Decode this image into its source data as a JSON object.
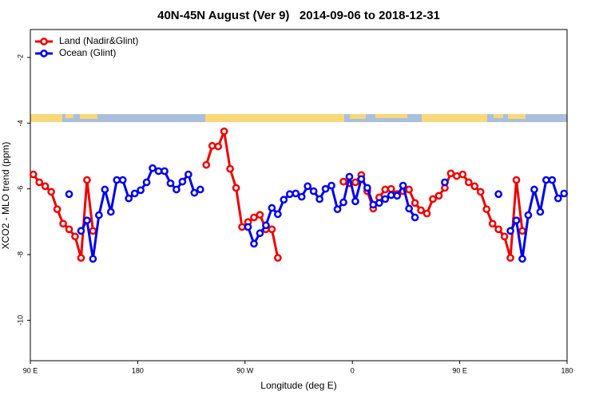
{
  "chart_data": {
    "type": "line",
    "title": "40N-45N August (Ver 9)   2014-09-06 to 2018-12-31",
    "xlabel": "Longitude (deg E)",
    "ylabel": "XCO2 - MLO trend (ppm)",
    "x": [
      92.5,
      97.5,
      102.5,
      107.5,
      112.5,
      117.5,
      122.5,
      127.5,
      132.5,
      137.5,
      142.5,
      147.5,
      152.5,
      157.5,
      162.5,
      167.5,
      172.5,
      177.5,
      182.5,
      187.5,
      192.5,
      197.5,
      202.5,
      207.5,
      212.5,
      217.5,
      222.5,
      227.5,
      232.5,
      237.5,
      242.5,
      247.5,
      252.5,
      257.5,
      262.5,
      267.5,
      272.5,
      277.5,
      282.5,
      287.5,
      292.5,
      297.5,
      302.5,
      307.5,
      312.5,
      317.5,
      322.5,
      327.5,
      332.5,
      337.5,
      342.5,
      347.5,
      352.5,
      357.5,
      362.5,
      367.5,
      372.5,
      377.5,
      382.5,
      387.5,
      392.5,
      397.5,
      402.5,
      407.5,
      412.5,
      417.5,
      422.5,
      427.5,
      432.5,
      437.5,
      442.5,
      447.5,
      452.5,
      457.5,
      462.5,
      467.5,
      472.5,
      477.5,
      482.5,
      487.5,
      492.5,
      497.5,
      502.5,
      507.5,
      512.5,
      517.5,
      522.5,
      527.5,
      532.5,
      537.5
    ],
    "series": [
      {
        "name": "Land (Nadir&Glint)",
        "color": "#ee0000",
        "values": [
          -5.56,
          -5.8,
          -5.92,
          -6.09,
          -6.62,
          -7.06,
          -7.23,
          -7.45,
          -8.1,
          -5.73,
          -7.28,
          null,
          null,
          null,
          null,
          null,
          null,
          null,
          null,
          null,
          null,
          null,
          null,
          null,
          null,
          null,
          null,
          null,
          null,
          -5.27,
          -4.69,
          -4.71,
          -4.25,
          -5.39,
          -5.97,
          -7.16,
          -7.01,
          -6.87,
          -6.79,
          -7.23,
          -7.23,
          -8.1,
          null,
          null,
          null,
          null,
          null,
          null,
          null,
          null,
          null,
          null,
          -5.78,
          -5.83,
          -5.8,
          -5.58,
          -6.07,
          -6.6,
          -6.26,
          -6.02,
          -6.0,
          -6.16,
          -6.07,
          -6.02,
          -6.43,
          -6.65,
          -6.75,
          -6.31,
          -6.21,
          -5.97,
          -5.53,
          -5.61,
          -5.56,
          -5.8,
          -5.92,
          -6.09,
          -6.62,
          -7.06,
          -7.23,
          -7.45,
          -8.1,
          -5.73,
          -7.28,
          null,
          null,
          null,
          null,
          null,
          null,
          null
        ]
      },
      {
        "name": "Ocean (Glint)",
        "color": "#0000ee",
        "values": [
          null,
          null,
          null,
          null,
          null,
          null,
          -6.16,
          null,
          -7.28,
          -6.96,
          -8.13,
          -6.8,
          -6.02,
          -6.7,
          -5.73,
          -5.73,
          -6.29,
          -6.14,
          -6.04,
          -5.8,
          -5.37,
          -5.46,
          -5.46,
          -5.83,
          -6.02,
          -5.78,
          -5.56,
          -6.12,
          -6.02,
          null,
          null,
          null,
          null,
          null,
          null,
          null,
          -7.16,
          -7.67,
          -7.35,
          -7.11,
          -6.58,
          -6.77,
          -6.33,
          -6.16,
          -6.14,
          -6.24,
          -5.92,
          -6.07,
          -6.31,
          -6.0,
          -5.9,
          -6.62,
          -6.41,
          -5.63,
          -6.38,
          -5.7,
          -5.97,
          -6.48,
          -6.43,
          -6.31,
          -6.19,
          -6.21,
          -5.9,
          -6.6,
          -6.87,
          null,
          null,
          null,
          null,
          -5.8,
          null,
          null,
          null,
          null,
          null,
          null,
          null,
          null,
          -6.16,
          null,
          -7.28,
          -6.96,
          -8.13,
          -6.8,
          -6.02,
          -6.7,
          -5.73,
          -5.73,
          -6.29,
          -6.14
        ]
      }
    ],
    "xlim": [
      90,
      540
    ],
    "xticks": [
      {
        "value": 90,
        "label": "90 E"
      },
      {
        "value": 180,
        "label": "180"
      },
      {
        "value": 270,
        "label": "90 W"
      },
      {
        "value": 360,
        "label": "0"
      },
      {
        "value": 450,
        "label": "90 E"
      },
      {
        "value": 540,
        "label": "180"
      }
    ],
    "ylim": [
      -11.23,
      -1.15
    ],
    "yticks": [
      -10,
      -8,
      -6,
      -4,
      -2
    ],
    "legend": "top-left"
  }
}
